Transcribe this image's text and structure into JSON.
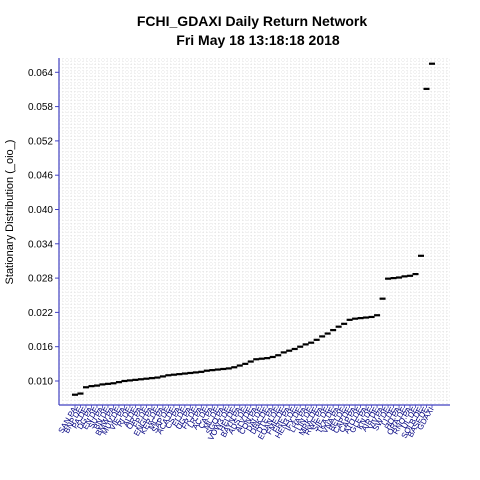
{
  "chart_data": {
    "type": "scatter",
    "title": "FCHI_GDAXI  Daily Return Network",
    "subtitle": "Fri May 18 13:18:18 2018",
    "xlabel": "",
    "ylabel": "Stationary Distribution (_oio_)",
    "ylim": [
      0.0072,
      0.0665
    ],
    "yticks": [
      "0.010",
      "0.016",
      "0.022",
      "0.028",
      "0.034",
      "0.040",
      "0.046",
      "0.052",
      "0.058",
      "0.064"
    ],
    "grid": true,
    "axis_color": "#4040c0",
    "tick_label_color": "#000080",
    "marker_color": "#000000",
    "categories": [
      "SAN.PA",
      "BNP.DE",
      "PA.DE",
      "DG.PA",
      "EN.DE",
      "SU.PA",
      "BN.DE",
      "BMW.PA",
      "MUV.DE",
      "VIE.PA",
      "RI.DE",
      "AI.DE",
      "OR.PA",
      "FP.DE",
      "ENGI.PA",
      "KER.DE",
      "MC.PA",
      "SAP.DE",
      "ACA.DE",
      "CS.PA",
      "EI.DE",
      "UG.PA",
      "FR.DE",
      "LR.PA",
      "AC.DE",
      "CA.PA",
      "ML.DE",
      "SGO.PA",
      "VOW3.DE",
      "HEI.DE",
      "BAYN.PA",
      "ADS.DE",
      "ALV.DE",
      "CON.PA",
      "DAI.DE",
      "DBK.DE",
      "DTE.PA",
      "EOAN.DE",
      "FME.DE",
      "FRE.PA",
      "HEN3.DE",
      "IFX.DE",
      "LHA.PA",
      "LIN.DE",
      "MRK.DE",
      "RWE.PA",
      "SIE.DE",
      "TKA.DE",
      "VNA.PA",
      "BEI.DE",
      "CAP.DE",
      "CAP.PA",
      "ATO.DE",
      "GLE.PA",
      "KN.DE",
      "AIR.DE",
      "VIV.PA",
      "SW.DE",
      "LI.DE",
      "HO.PA",
      "ORA.DE",
      "RNO.PA",
      "UL.DE",
      "SOLB.DE",
      "BASF.DE",
      "GDAXI"
    ],
    "values": [
      0.0076,
      0.0078,
      0.0089,
      0.0091,
      0.0092,
      0.0094,
      0.0095,
      0.0096,
      0.0098,
      0.01,
      0.0101,
      0.0102,
      0.0103,
      0.0104,
      0.0105,
      0.0106,
      0.0108,
      0.011,
      0.0111,
      0.0112,
      0.0113,
      0.0114,
      0.0115,
      0.0116,
      0.0118,
      0.0119,
      0.012,
      0.0121,
      0.0122,
      0.0124,
      0.0127,
      0.013,
      0.0134,
      0.0138,
      0.0139,
      0.014,
      0.0142,
      0.0145,
      0.015,
      0.0153,
      0.0156,
      0.016,
      0.0164,
      0.0167,
      0.0172,
      0.0178,
      0.0183,
      0.0189,
      0.0195,
      0.02,
      0.0207,
      0.0209,
      0.021,
      0.0211,
      0.0212,
      0.0215,
      0.0244,
      0.0279,
      0.028,
      0.0281,
      0.0283,
      0.0284,
      0.0287,
      0.0319,
      0.0611,
      0.0655
    ]
  }
}
